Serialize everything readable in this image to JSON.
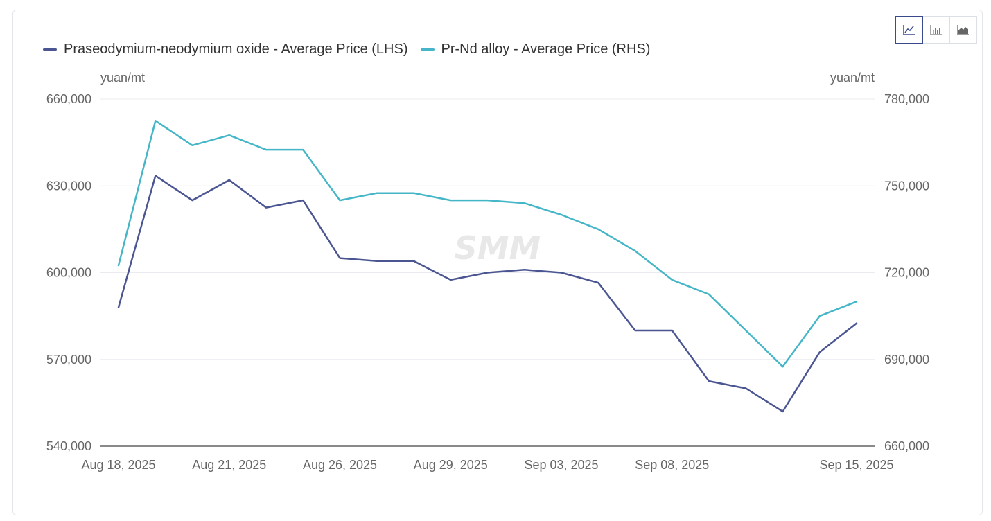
{
  "toolbar": {
    "buttons": [
      {
        "icon": "line-chart-icon",
        "active": true
      },
      {
        "icon": "bar-chart-icon",
        "active": false
      },
      {
        "icon": "area-chart-icon",
        "active": false
      }
    ]
  },
  "watermark": "SMM",
  "colors": {
    "series1": "#4a5591",
    "series2": "#45b6c8",
    "grid": "#e9ebef",
    "axis": "#444444",
    "tick": "#666666"
  },
  "chart_data": {
    "type": "line",
    "title": "",
    "legend_position": "top-left",
    "grid": true,
    "x_tick_labels": [
      "Aug 18, 2025",
      "Aug 21, 2025",
      "Aug 26, 2025",
      "Aug 29, 2025",
      "Sep 03, 2025",
      "Sep 08, 2025",
      "Sep 15, 2025"
    ],
    "x_tick_indices": [
      0,
      3,
      6,
      9,
      12,
      15,
      20
    ],
    "x": [
      "Aug 18, 2025",
      "Aug 19, 2025",
      "Aug 20, 2025",
      "Aug 21, 2025",
      "Aug 22, 2025",
      "Aug 25, 2025",
      "Aug 26, 2025",
      "Aug 27, 2025",
      "Aug 28, 2025",
      "Aug 29, 2025",
      "Sep 01, 2025",
      "Sep 02, 2025",
      "Sep 03, 2025",
      "Sep 04, 2025",
      "Sep 05, 2025",
      "Sep 08, 2025",
      "Sep 09, 2025",
      "Sep 10, 2025",
      "Sep 11, 2025",
      "Sep 12, 2025",
      "Sep 15, 2025"
    ],
    "y_left": {
      "label": "yuan/mt",
      "range": [
        540000,
        660000
      ],
      "ticks": [
        "540,000",
        "570,000",
        "600,000",
        "630,000",
        "660,000"
      ]
    },
    "y_right": {
      "label": "yuan/mt",
      "range": [
        660000,
        780000
      ],
      "ticks": [
        "660,000",
        "690,000",
        "720,000",
        "750,000",
        "780,000"
      ]
    },
    "series": [
      {
        "name": "Praseodymium-neodymium oxide - Average Price (LHS)",
        "axis": "left",
        "color": "#4a5591",
        "values": [
          588000,
          633500,
          625000,
          632000,
          622500,
          625000,
          605000,
          604000,
          604000,
          597500,
          600000,
          601000,
          600000,
          596500,
          580000,
          580000,
          562500,
          560000,
          552000,
          572500,
          582500
        ]
      },
      {
        "name": "Pr-Nd alloy - Average Price (RHS)",
        "axis": "right",
        "color": "#45b6c8",
        "values": [
          722500,
          772500,
          764000,
          767500,
          762500,
          762500,
          745000,
          747500,
          747500,
          745000,
          745000,
          744000,
          740000,
          735000,
          727500,
          717500,
          712500,
          700000,
          687500,
          705000,
          710000
        ]
      }
    ]
  }
}
